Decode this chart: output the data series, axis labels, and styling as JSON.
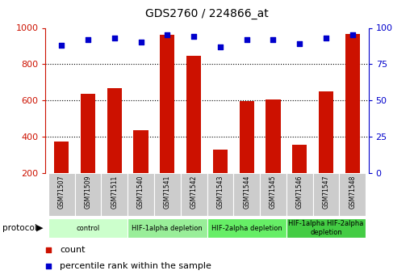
{
  "title": "GDS2760 / 224866_at",
  "samples": [
    "GSM71507",
    "GSM71509",
    "GSM71511",
    "GSM71540",
    "GSM71541",
    "GSM71542",
    "GSM71543",
    "GSM71544",
    "GSM71545",
    "GSM71546",
    "GSM71547",
    "GSM71548"
  ],
  "counts": [
    375,
    635,
    668,
    438,
    960,
    848,
    328,
    598,
    605,
    355,
    648,
    965
  ],
  "percentile_ranks": [
    88,
    92,
    93,
    90,
    95,
    94,
    87,
    92,
    92,
    89,
    93,
    95
  ],
  "ylim_left": [
    200,
    1000
  ],
  "ylim_right": [
    0,
    100
  ],
  "yticks_left": [
    200,
    400,
    600,
    800,
    1000
  ],
  "yticks_right": [
    0,
    25,
    50,
    75,
    100
  ],
  "bar_color": "#cc1100",
  "dot_color": "#0000cc",
  "background_color": "#ffffff",
  "plot_bg_color": "#ffffff",
  "protocol_groups": [
    {
      "label": "control",
      "start": 0,
      "end": 2,
      "color": "#ccffcc"
    },
    {
      "label": "HIF-1alpha depletion",
      "start": 3,
      "end": 5,
      "color": "#99ee99"
    },
    {
      "label": "HIF-2alpha depletion",
      "start": 6,
      "end": 8,
      "color": "#66ee66"
    },
    {
      "label": "HIF-1alpha HIF-2alpha\ndepletion",
      "start": 9,
      "end": 11,
      "color": "#44cc44"
    }
  ],
  "protocol_label": "protocol",
  "legend_count_label": "count",
  "legend_percentile_label": "percentile rank within the sample",
  "tick_color_left": "#cc1100",
  "tick_color_right": "#0000cc",
  "xticklabel_bg": "#cccccc",
  "grid_yticks": [
    400,
    600,
    800
  ]
}
